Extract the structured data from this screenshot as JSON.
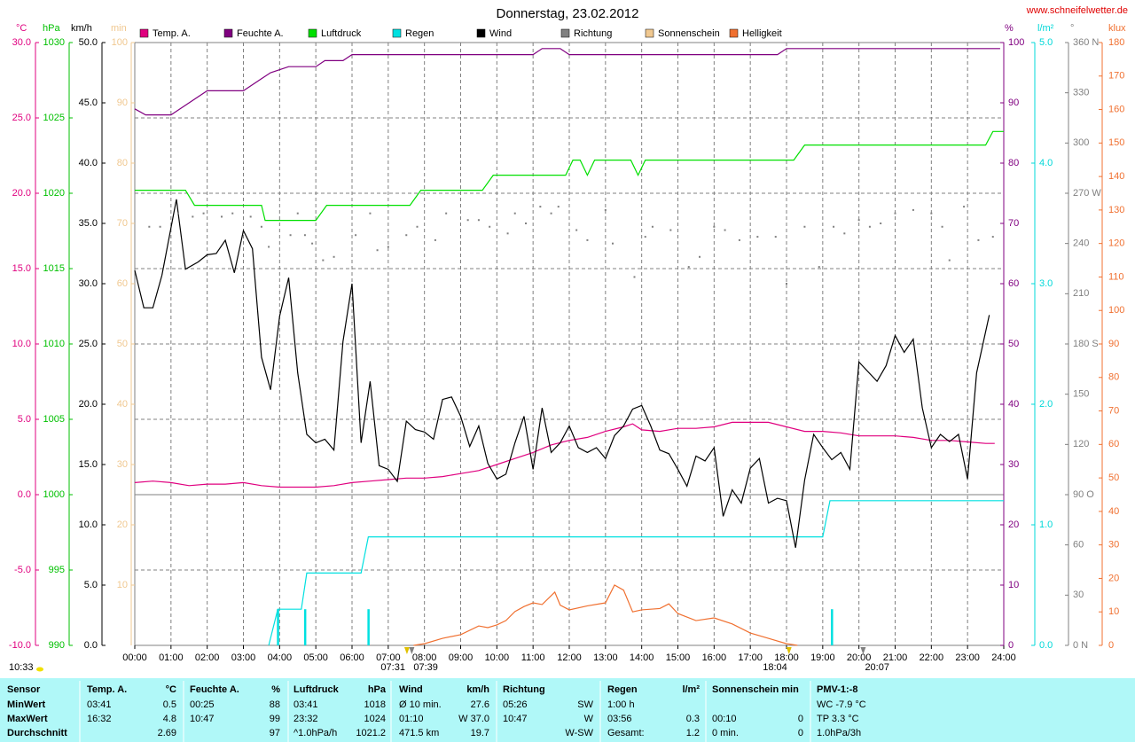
{
  "site": "www.schneifelwetter.de",
  "day_length": "10:33",
  "chart_data": {
    "type": "line",
    "title": "Donnerstag, 23.02.2012",
    "xlim": [
      0,
      24
    ],
    "xticks": [
      {
        "value": 0,
        "label": "00:00"
      },
      {
        "value": 1,
        "label": "01:00"
      },
      {
        "value": 2,
        "label": "02:00"
      },
      {
        "value": 3,
        "label": "03:00"
      },
      {
        "value": 4,
        "label": "04:00"
      },
      {
        "value": 5,
        "label": "05:00"
      },
      {
        "value": 6,
        "label": "06:00"
      },
      {
        "value": 7,
        "label": "07:00"
      },
      {
        "value": 8,
        "label": "08:00"
      },
      {
        "value": 9,
        "label": "09:00"
      },
      {
        "value": 10,
        "label": "10:00"
      },
      {
        "value": 11,
        "label": "11:00"
      },
      {
        "value": 12,
        "label": "12:00"
      },
      {
        "value": 13,
        "label": "13:00"
      },
      {
        "value": 14,
        "label": "14:00"
      },
      {
        "value": 15,
        "label": "15:00"
      },
      {
        "value": 16,
        "label": "16:00"
      },
      {
        "value": 17,
        "label": "17:00"
      },
      {
        "value": 18,
        "label": "18:00"
      },
      {
        "value": 19,
        "label": "19:00"
      },
      {
        "value": 20,
        "label": "20:00"
      },
      {
        "value": 21,
        "label": "21:00"
      },
      {
        "value": 22,
        "label": "22:00"
      },
      {
        "value": 23,
        "label": "23:00"
      },
      {
        "value": 24,
        "label": "24:00"
      }
    ],
    "grid": true,
    "axes": [
      {
        "label": "°C",
        "color": "#e0007f",
        "lim": [
          -10,
          30
        ],
        "ticks": [
          {
            "value": -10,
            "label": "-10.0"
          },
          {
            "value": -5,
            "label": "-5.0"
          },
          {
            "value": 0,
            "label": "0.0"
          },
          {
            "value": 5,
            "label": "5.0"
          },
          {
            "value": 10,
            "label": "10.0"
          },
          {
            "value": 15,
            "label": "15.0"
          },
          {
            "value": 20,
            "label": "20.0"
          },
          {
            "value": 25,
            "label": "25.0"
          },
          {
            "value": 30,
            "label": "30.0"
          }
        ]
      },
      {
        "label": "hPa",
        "color": "#00c000",
        "lim": [
          990,
          1030
        ],
        "ticks": [
          990,
          995,
          1000,
          1005,
          1010,
          1015,
          1020,
          1025,
          1030
        ]
      },
      {
        "label": "km/h",
        "color": "#000000",
        "lim": [
          0,
          50
        ],
        "ticks": [
          {
            "value": 0,
            "label": "0.0"
          },
          {
            "value": 5,
            "label": "5.0"
          },
          {
            "value": 10,
            "label": "10.0"
          },
          {
            "value": 15,
            "label": "15.0"
          },
          {
            "value": 20,
            "label": "20.0"
          },
          {
            "value": 25,
            "label": "25.0"
          },
          {
            "value": 30,
            "label": "30.0"
          },
          {
            "value": 35,
            "label": "35.0"
          },
          {
            "value": 40,
            "label": "40.0"
          },
          {
            "value": 45,
            "label": "45.0"
          },
          {
            "value": 50,
            "label": "50.0"
          }
        ]
      },
      {
        "label": "min",
        "color": "#f0c890",
        "lim": [
          0,
          100
        ],
        "ticks": [
          10,
          20,
          30,
          40,
          50,
          60,
          70,
          80,
          90,
          100
        ]
      },
      {
        "label": "%",
        "color": "#800080",
        "lim": [
          0,
          100
        ],
        "ticks": [
          0,
          10,
          20,
          30,
          40,
          50,
          60,
          70,
          80,
          90,
          100
        ]
      },
      {
        "label": "l/m²",
        "color": "#00d8d8",
        "lim": [
          0,
          5
        ],
        "ticks": [
          {
            "value": 0,
            "label": "0.0"
          },
          {
            "value": 1,
            "label": "1.0"
          },
          {
            "value": 2,
            "label": "2.0"
          },
          {
            "value": 3,
            "label": "3.0"
          },
          {
            "value": 4,
            "label": "4.0"
          },
          {
            "value": 5,
            "label": "5.0"
          }
        ]
      },
      {
        "label": "°",
        "color": "#808080",
        "lim": [
          0,
          360
        ],
        "ticks": [
          {
            "value": 0,
            "label": "0 N"
          },
          30,
          60,
          {
            "value": 90,
            "label": "90 O"
          },
          120,
          150,
          {
            "value": 180,
            "label": "180 S"
          },
          210,
          240,
          {
            "value": 270,
            "label": "270 W"
          },
          300,
          330,
          {
            "value": 360,
            "label": "360 N"
          }
        ]
      },
      {
        "label": "klux",
        "color": "#f07030",
        "lim": [
          0,
          180
        ],
        "ticks": [
          0,
          10,
          20,
          30,
          40,
          50,
          60,
          70,
          80,
          90,
          100,
          110,
          120,
          130,
          140,
          150,
          160,
          170,
          180
        ]
      }
    ],
    "series": [
      {
        "name": "Temp. A.",
        "color": "#e0007f",
        "axis": 0,
        "x": [
          0,
          0.5,
          1,
          1.5,
          2,
          2.5,
          3,
          3.5,
          4,
          4.5,
          5,
          5.5,
          6,
          6.5,
          7,
          7.5,
          8,
          8.5,
          9,
          9.5,
          10,
          10.5,
          11,
          11.5,
          12,
          12.5,
          13,
          13.5,
          13.75,
          14,
          14.5,
          15,
          15.5,
          16,
          16.5,
          17,
          17.5,
          18,
          18.5,
          19,
          19.5,
          20,
          20.5,
          21,
          21.5,
          22,
          22.5,
          23,
          23.5,
          23.75
        ],
        "values": [
          0.8,
          0.9,
          0.8,
          0.6,
          0.7,
          0.7,
          0.8,
          0.6,
          0.5,
          0.5,
          0.5,
          0.6,
          0.8,
          0.9,
          1.0,
          1.1,
          1.1,
          1.2,
          1.4,
          1.6,
          2.0,
          2.4,
          2.8,
          3.3,
          3.6,
          3.8,
          4.2,
          4.5,
          4.7,
          4.3,
          4.2,
          4.4,
          4.4,
          4.5,
          4.8,
          4.8,
          4.8,
          4.5,
          4.2,
          4.2,
          4.1,
          3.9,
          3.9,
          3.9,
          3.8,
          3.6,
          3.6,
          3.5,
          3.4,
          3.4
        ]
      },
      {
        "name": "Feuchte A.",
        "color": "#800080",
        "axis": 4,
        "x": [
          0,
          0.3,
          1,
          2,
          3,
          3.5,
          3.75,
          4.25,
          5,
          5.25,
          5.75,
          6,
          11,
          11.25,
          11.75,
          12,
          17.75,
          18,
          23.9
        ],
        "values": [
          89,
          88,
          88,
          92,
          92,
          94,
          95,
          96,
          96,
          97,
          97,
          98,
          98,
          99,
          99,
          98,
          98,
          99,
          99
        ]
      },
      {
        "name": "Luftdruck",
        "color": "#00e000",
        "axis": 1,
        "x": [
          0,
          1.4,
          1.65,
          3.5,
          3.6,
          5,
          5.3,
          7.6,
          7.9,
          9.6,
          9.9,
          11.9,
          12.1,
          12.3,
          12.5,
          12.7,
          13.7,
          13.9,
          14.1,
          18.2,
          18.5,
          23.5,
          23.7,
          24
        ],
        "values": [
          1020.2,
          1020.2,
          1019.2,
          1019.2,
          1018.2,
          1018.2,
          1019.2,
          1019.2,
          1020.2,
          1020.2,
          1021.2,
          1021.2,
          1022.2,
          1022.2,
          1021.2,
          1022.2,
          1022.2,
          1021.2,
          1022.2,
          1022.2,
          1023.2,
          1023.2,
          1024.1,
          1024.1
        ]
      },
      {
        "name": "Regen",
        "color": "#00e0e0",
        "axis": 5,
        "x": [
          3.7,
          3.95,
          4.6,
          4.75,
          6.25,
          6.45,
          19.0,
          19.2,
          24
        ],
        "values": [
          0,
          0.3,
          0.3,
          0.6,
          0.6,
          0.9,
          0.9,
          1.2,
          1.2
        ],
        "bars": {
          "x": [
            3.95,
            4.7,
            6.45,
            19.25
          ],
          "values": [
            0.3,
            0.3,
            0.3,
            0.3
          ]
        }
      },
      {
        "name": "Wind",
        "color": "#000000",
        "axis": 2,
        "x": [
          0,
          0.25,
          0.5,
          0.75,
          1.15,
          1.4,
          1.75,
          2,
          2.25,
          2.5,
          2.75,
          3,
          3.25,
          3.5,
          3.75,
          4,
          4.25,
          4.5,
          4.75,
          5,
          5.25,
          5.5,
          5.75,
          6,
          6.25,
          6.5,
          6.75,
          7,
          7.25,
          7.5,
          7.75,
          8,
          8.25,
          8.5,
          8.75,
          9,
          9.25,
          9.5,
          9.75,
          10,
          10.25,
          10.5,
          10.75,
          11,
          11.25,
          11.5,
          11.75,
          12,
          12.25,
          12.5,
          12.75,
          13,
          13.25,
          13.5,
          13.75,
          14,
          14.25,
          14.5,
          14.75,
          15,
          15.25,
          15.5,
          15.75,
          16,
          16.25,
          16.5,
          16.75,
          17,
          17.25,
          17.5,
          17.75,
          18,
          18.25,
          18.5,
          18.75,
          19,
          19.25,
          19.5,
          19.75,
          20,
          20.5,
          20.75,
          21,
          21.25,
          21.5,
          21.75,
          22,
          22.25,
          22.5,
          22.75,
          23,
          23.25,
          23.6
        ],
        "values": [
          31.1,
          28.0,
          28.0,
          30.7,
          37.0,
          31.2,
          31.8,
          32.4,
          32.5,
          33.6,
          30.9,
          34.4,
          32.9,
          23.9,
          21.2,
          27.3,
          30.5,
          22.6,
          17.5,
          16.8,
          17.1,
          16.2,
          25.2,
          30.0,
          16.8,
          21.9,
          14.9,
          14.6,
          13.6,
          18.6,
          17.9,
          17.7,
          17.1,
          20.4,
          20.6,
          19.0,
          16.5,
          18.2,
          15.1,
          13.8,
          14.2,
          16.8,
          19.0,
          14.6,
          19.7,
          16.0,
          16.8,
          18.2,
          16.4,
          16.0,
          16.4,
          15.5,
          17.4,
          18.2,
          19.6,
          19.9,
          18.2,
          16.2,
          15.9,
          14.6,
          13.2,
          15.7,
          15.3,
          16.4,
          10.7,
          12.9,
          11.8,
          14.7,
          15.5,
          11.8,
          12.2,
          12.0,
          8.1,
          13.7,
          17.5,
          16.4,
          15.4,
          16.0,
          14.6,
          23.5,
          21.9,
          23.2,
          25.7,
          24.3,
          25.4,
          19.7,
          16.4,
          17.5,
          16.9,
          17.5,
          13.8,
          22.6,
          27.4
        ]
      },
      {
        "name": "Richtung",
        "color": "#808080",
        "axis": 6,
        "type": "scatter",
        "x": [
          0.4,
          0.7,
          1.2,
          1.6,
          1.9,
          2.4,
          2.7,
          3.2,
          3.5,
          3.7,
          4.3,
          4.5,
          4.7,
          4.9,
          5.2,
          5.5,
          6.1,
          6.5,
          6.7,
          7.0,
          7.5,
          7.8,
          8.3,
          8.6,
          9.2,
          9.5,
          9.8,
          10.3,
          10.5,
          10.8,
          11.2,
          11.5,
          11.7,
          12.2,
          12.5,
          13.0,
          13.2,
          13.8,
          14.1,
          14.3,
          14.8,
          15.3,
          15.6,
          16.0,
          16.3,
          16.7,
          17.2,
          17.7,
          18.0,
          18.5,
          18.9,
          19.3,
          19.6,
          20.0,
          20.3,
          20.6,
          21.0,
          21.5,
          22.0,
          22.3,
          22.5,
          22.9,
          23.3,
          23.7
        ],
        "values": [
          250,
          250,
          258,
          256,
          258,
          256,
          258,
          256,
          250,
          238,
          245,
          258,
          245,
          240,
          230,
          232,
          245,
          258,
          236,
          238,
          245,
          250,
          242,
          258,
          254,
          254,
          250,
          246,
          258,
          252,
          262,
          258,
          262,
          248,
          242,
          260,
          240,
          220,
          244,
          250,
          248,
          226,
          232,
          250,
          248,
          242,
          244,
          244,
          216,
          250,
          226,
          250,
          246,
          254,
          250,
          252,
          258,
          260,
          258,
          250,
          230,
          262,
          242,
          244
        ]
      },
      {
        "name": "Sonnenschein",
        "color": "#f0c890",
        "axis": 3
      },
      {
        "name": "Helligkeit",
        "color": "#f07030",
        "axis": 7,
        "x": [
          7.7,
          8,
          8.5,
          9,
          9.5,
          9.75,
          10,
          10.25,
          10.5,
          10.75,
          11,
          11.25,
          11.6,
          11.75,
          12,
          12.5,
          13,
          13.25,
          13.5,
          13.75,
          14,
          14.5,
          14.75,
          15,
          15.5,
          16,
          16.5,
          17,
          17.5,
          18,
          18.3
        ],
        "values": [
          0,
          0.5,
          2.1,
          3.2,
          5.8,
          5.3,
          6.1,
          7.4,
          10.1,
          11.6,
          12.7,
          12.2,
          15.9,
          12.0,
          10.6,
          11.8,
          12.7,
          18.0,
          16.5,
          10.0,
          10.6,
          11.0,
          12.4,
          9.5,
          7.4,
          8.2,
          6.4,
          3.7,
          2.1,
          0.5,
          0
        ]
      }
    ],
    "annotations": [
      {
        "x": 7.517,
        "label": "07:31"
      },
      {
        "x": 7.65,
        "label": "07:39"
      },
      {
        "x": 18.067,
        "label": "18:04"
      },
      {
        "x": 20.117,
        "label": "20:07"
      }
    ]
  },
  "table": {
    "header": [
      "Sensor",
      "Temp. A.",
      "°C",
      "Feuchte A.",
      "%",
      "Luftdruck",
      "hPa",
      "Wind",
      "km/h",
      "Richtung",
      null,
      "Regen",
      "l/m²",
      "Sonnenschein min",
      null,
      "PMV-1:-8"
    ],
    "rows": [
      [
        "MinWert",
        "03:41",
        "0.5",
        "00:25",
        "88",
        "03:41",
        "1018",
        "Ø 10 min.",
        "27.6",
        "05:26",
        "SW",
        "1:00 h",
        null,
        null,
        null,
        "WC -7.9 °C"
      ],
      [
        "MaxWert",
        "16:32",
        "4.8",
        "10:47",
        "99",
        "23:32",
        "1024",
        "01:10",
        "W 37.0",
        "10:47",
        "W",
        "03:56",
        "0.3",
        "00:10",
        "0",
        "TP 3.3 °C"
      ],
      [
        "Durchschnitt",
        null,
        "2.69",
        null,
        "97",
        "^1.0hPa/h",
        "1021.2",
        "471.5 km",
        "19.7",
        null,
        "W-SW",
        "Gesamt:",
        "1.2",
        "0 min.",
        "0",
        "1.0hPa/3h"
      ]
    ]
  }
}
